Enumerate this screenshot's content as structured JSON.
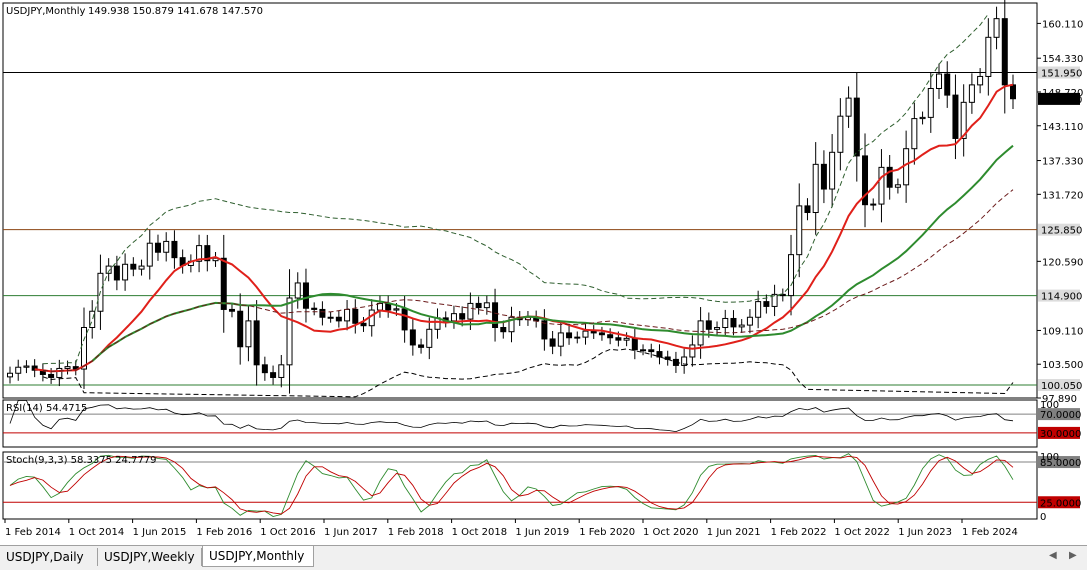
{
  "header": {
    "symbol": "USDJPY,Monthly",
    "ohlc": "149.938 150.879 141.678 147.570"
  },
  "price_axis": {
    "ticks": [
      "160.110",
      "154.330",
      "148.720",
      "143.110",
      "137.330",
      "131.720",
      "120.590",
      "109.110",
      "103.500",
      "97.890"
    ],
    "markers": [
      {
        "label": "151.950",
        "value": 151.95,
        "color": "#dcdcdc",
        "line": "#000000",
        "textColor": "#000000"
      },
      {
        "label": "147.570",
        "value": 147.57,
        "color": "#000000",
        "line": null,
        "textColor": "#ffffff"
      },
      {
        "label": "125.850",
        "value": 125.85,
        "color": "#dcdcdc",
        "line": "#8b4513",
        "textColor": "#000000"
      },
      {
        "label": "114.900",
        "value": 114.9,
        "color": "#dcdcdc",
        "line": "#2e7d32",
        "textColor": "#000000"
      },
      {
        "label": "100.050",
        "value": 100.05,
        "color": "#dcdcdc",
        "line": "#2e7d32",
        "textColor": "#000000"
      }
    ]
  },
  "rsi": {
    "label": "RSI(14) 54.4715",
    "levels": [
      {
        "label": "70.0000",
        "value": 70
      },
      {
        "label": "30.0000",
        "value": 30
      }
    ],
    "scale_top": "100"
  },
  "stoch": {
    "label": "Stoch(9,3,3) 58.3375 24.7779",
    "levels": [
      {
        "label": "85.0000",
        "value": 85
      },
      {
        "label": "25.0000",
        "value": 25
      }
    ],
    "scale_top": "100",
    "scale_bottom": "0"
  },
  "time_axis": [
    "1 Feb 2014",
    "1 Oct 2014",
    "1 Jun 2015",
    "1 Feb 2016",
    "1 Oct 2016",
    "1 Jun 2017",
    "1 Feb 2018",
    "1 Oct 2018",
    "1 Jun 2019",
    "1 Feb 2020",
    "1 Oct 2020",
    "1 Jun 2021",
    "1 Feb 2022",
    "1 Oct 2022",
    "1 Jun 2023",
    "1 Feb 2024"
  ],
  "tabs": [
    {
      "label": "USDJPY,Daily",
      "active": false
    },
    {
      "label": "USDJPY,Weekly",
      "active": false
    },
    {
      "label": "USDJPY,Monthly",
      "active": true
    }
  ],
  "chart_data": {
    "type": "candlestick",
    "ylim": [
      97.89,
      163.5
    ],
    "closes": [
      102.0,
      103.0,
      103.2,
      102.5,
      101.8,
      101.3,
      102.8,
      103.1,
      102.7,
      109.6,
      112.3,
      118.6,
      119.8,
      117.5,
      120.1,
      119.3,
      119.8,
      123.6,
      122.1,
      123.9,
      121.2,
      119.9,
      120.6,
      123.2,
      120.7,
      121.1,
      112.6,
      112.3,
      106.4,
      110.7,
      103.4,
      102.1,
      101.3,
      103.4,
      114.5,
      117.0,
      112.8,
      112.6,
      111.3,
      111.3,
      110.7,
      112.6,
      110.3,
      109.9,
      112.5,
      113.6,
      112.5,
      112.7,
      109.2,
      106.7,
      106.3,
      109.3,
      111.2,
      110.7,
      111.9,
      111.0,
      113.6,
      112.9,
      113.7,
      109.6,
      108.9,
      111.3,
      110.9,
      111.3,
      110.7,
      107.7,
      106.5,
      108.7,
      107.9,
      108.0,
      109.0,
      108.7,
      108.4,
      107.9,
      107.5,
      107.8,
      105.9,
      105.9,
      105.6,
      104.7,
      104.3,
      103.3,
      104.7,
      106.7,
      110.7,
      109.3,
      109.6,
      111.1,
      109.7,
      110.0,
      111.3,
      113.9,
      113.1,
      115.1,
      114.9,
      121.7,
      129.8,
      128.7,
      136.7,
      132.6,
      138.7,
      144.7,
      147.7,
      138.1,
      130.0,
      130.1,
      136.2,
      132.9,
      133.3,
      139.3,
      144.3,
      144.5,
      149.3,
      151.7,
      148.2,
      141.0,
      147.0,
      149.9,
      151.3,
      157.8,
      160.9,
      149.9,
      147.6
    ],
    "ma_fast_red": {
      "name": "",
      "values_start_index": 0
    },
    "ma_slow_green": {
      "name": "",
      "values_start_index": 0
    },
    "rsi_current": 54.4715,
    "stoch_main": 58.3375,
    "stoch_signal": 24.7779
  }
}
